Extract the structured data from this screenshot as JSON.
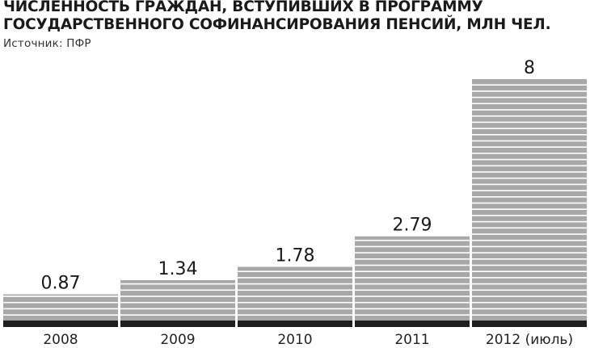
{
  "title_lines": [
    "ЧИСЛЕННОСТЬ ГРАЖДАН, ВСТУПИВШИХ В ПРОГРАММУ",
    "ГОСУДАРСТВЕННОГО СОФИНАНСИРОВАНИЯ ПЕНСИЙ, МЛН ЧЕЛ."
  ],
  "source": "Источник: ПФР",
  "colors": {
    "bar": "#a8a8a8",
    "bar_stripe": "#ffffff",
    "baseline": "#1f1f1f",
    "text": "#1a1a1a"
  },
  "chart_data": {
    "type": "bar",
    "title": "ЧИСЛЕННОСТЬ ГРАЖДАН, ВСТУПИВШИХ В ПРОГРАММУ ГОСУДАРСТВЕННОГО СОФИНАНСИРОВАНИЯ ПЕНСИЙ, МЛН ЧЕЛ.",
    "categories": [
      "2008",
      "2009",
      "2010",
      "2011",
      "2012 (июль)"
    ],
    "values": [
      0.87,
      1.34,
      1.78,
      2.79,
      8
    ],
    "value_labels": [
      "0.87",
      "1.34",
      "1.78",
      "2.79",
      "8"
    ],
    "xlabel": "",
    "ylabel": "",
    "ylim": [
      0,
      8
    ],
    "grid": false,
    "legend": "none",
    "data_labels": "above bars"
  }
}
